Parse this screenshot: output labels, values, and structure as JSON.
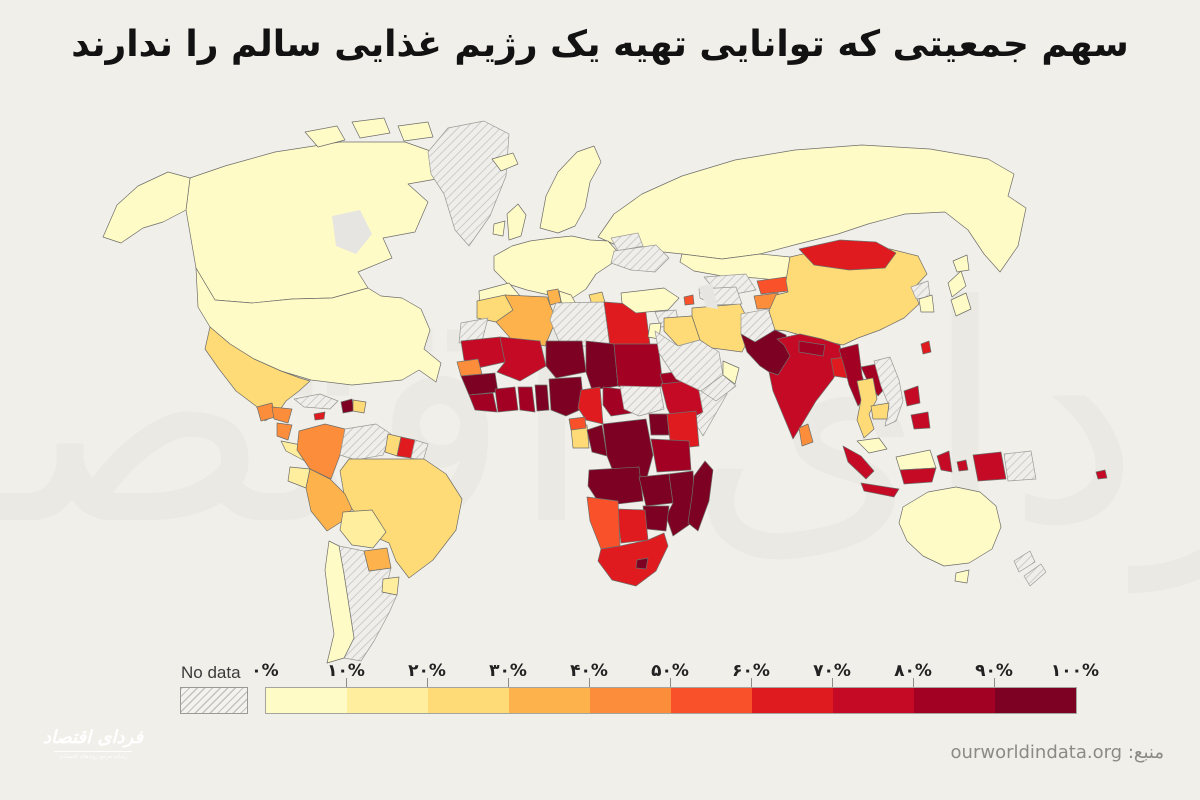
{
  "title": "سهم جمعیتی که توانایی تهیه یک رژیم غذایی سالم را ندارند",
  "watermark_text": "فردای اقتصاد",
  "watermark_color": "#E7E5DF",
  "legend": {
    "no_data_label": "No data",
    "tick_labels": [
      "۰%",
      "۱۰%",
      "۲۰%",
      "۳۰%",
      "۴۰%",
      "۵۰%",
      "۶۰%",
      "۷۰%",
      "۸۰%",
      "۹۰%",
      "۱۰۰%"
    ],
    "bins": [
      {
        "range": "0-10",
        "color": "#FFFBC7"
      },
      {
        "range": "10-20",
        "color": "#FEEE9E"
      },
      {
        "range": "20-30",
        "color": "#FEDB77"
      },
      {
        "range": "30-40",
        "color": "#FEB24C"
      },
      {
        "range": "40-50",
        "color": "#FC8D3B"
      },
      {
        "range": "50-60",
        "color": "#F9512A"
      },
      {
        "range": "60-70",
        "color": "#E01B1F"
      },
      {
        "range": "70-80",
        "color": "#C50A26"
      },
      {
        "range": "80-90",
        "color": "#A30123"
      },
      {
        "range": "90-100",
        "color": "#7D0122"
      }
    ]
  },
  "source": {
    "text": "منبع: ourworldindata.org"
  },
  "logo": {
    "title": "فردای اقتصاد",
    "subtitle": "رسانه مرجع روندهای اقتصادی",
    "bg_color": "#19492A"
  },
  "chart_data": {
    "type": "heatmap",
    "title": "سهم جمعیتی که توانایی تهیه یک رژیم غذایی سالم را ندارند",
    "legend_bins_percent": [
      "0-10",
      "10-20",
      "20-30",
      "30-40",
      "40-50",
      "50-60",
      "60-70",
      "70-80",
      "80-90",
      "90-100",
      "No data"
    ],
    "note": "choropleth world map; each country keyed to a percent bin below"
  },
  "map": {
    "border_color": "#6E6E6A",
    "no_data_stroke": "#9A9A95",
    "water_color": "#E6E5E1",
    "countries": {
      "alaska": 0,
      "canada": 0,
      "arctic1": 0,
      "arctic2": 0,
      "arctic3": 0,
      "arctic4": 0,
      "greenland": "nd",
      "usa": 0,
      "mexico": 2,
      "guatemala": 4,
      "honduras": 4,
      "nicaragua": 4,
      "costarica-panama": 1,
      "cuba": "nd",
      "haiti": 9,
      "domrep": 2,
      "jamaica": 6,
      "colombia": 4,
      "venezuela": "nd",
      "guyana": 2,
      "suriname": 6,
      "frguiana": "nd",
      "ecuador": 1,
      "peru": 3,
      "brazil": 2,
      "bolivia": 1,
      "paraguay": 3,
      "uruguay": 1,
      "chile": 0,
      "argentina": "nd",
      "iceland": 0,
      "ireland": 0,
      "uk": 0,
      "scandinavia": 0,
      "europe": 0,
      "iberia": 0,
      "italy": 0,
      "balkans": 2,
      "ukraine": "nd",
      "belarus": "nd",
      "russia": 0,
      "morocco": 2,
      "wsahara": "nd",
      "algeria": 3,
      "tunisia": 3,
      "libya": "nd",
      "egypt": 6,
      "mauritania": 7,
      "mali": 7,
      "niger": 9,
      "chad": 9,
      "sudan": 8,
      "eritrea": 8,
      "senegal": 4,
      "guinea": 9,
      "sierraleone": 8,
      "ivorycoast": 8,
      "ghana": 8,
      "togobenin": 9,
      "nigeria": 9,
      "cameroon": 6,
      "car": 8,
      "ssudan": "nd",
      "ethiopia": 7,
      "djibouti": 6,
      "somalia": "nd",
      "kenya": 6,
      "uganda": 9,
      "gabon": 2,
      "eqguinea": 5,
      "congo": 9,
      "drc": 9,
      "tanzania": 8,
      "angola": 9,
      "zambia": 9,
      "mozambique": 9,
      "zimbabwe": 9,
      "botswana": 6,
      "namibia": 5,
      "southafrica": 6,
      "lesotho": 9,
      "madagascar": 9,
      "turkey": 0,
      "syria": "nd",
      "jordanisrael": 0,
      "iraq": 2,
      "saudi": "nd",
      "yemen": "nd",
      "oman": 0,
      "iran": 2,
      "armenia": 5,
      "afghanistan": "nd",
      "turkmenistan": "nd",
      "uzbekistan": "nd",
      "kazakhstan": 0,
      "kyrgyzstan": 5,
      "tajikistan": 4,
      "pakistan": 9,
      "india": 7,
      "nepal": 8,
      "bangladesh": 6,
      "srilanka": 4,
      "china": 2,
      "mongolia": 6,
      "taiwan": 6,
      "myanmar": 8,
      "thailand": 2,
      "laos": 8,
      "cambodia": 2,
      "vietnam": "nd",
      "malaysia-pen": 0,
      "borneo-malay": 0,
      "sumatra": 7,
      "java": 7,
      "kalimantan": 7,
      "sulawesi": 7,
      "maluku": 7,
      "wpapua": 7,
      "png": "nd",
      "philippines-luzon": 7,
      "philippines-mindanao": 7,
      "nkorea": "nd",
      "skorea": 0,
      "japan1": 0,
      "japan2": 0,
      "hokkaido": 0,
      "australia": 0,
      "tasmania": 0,
      "nz1": "nd",
      "nz2": "nd",
      "fiji": 7
    }
  }
}
